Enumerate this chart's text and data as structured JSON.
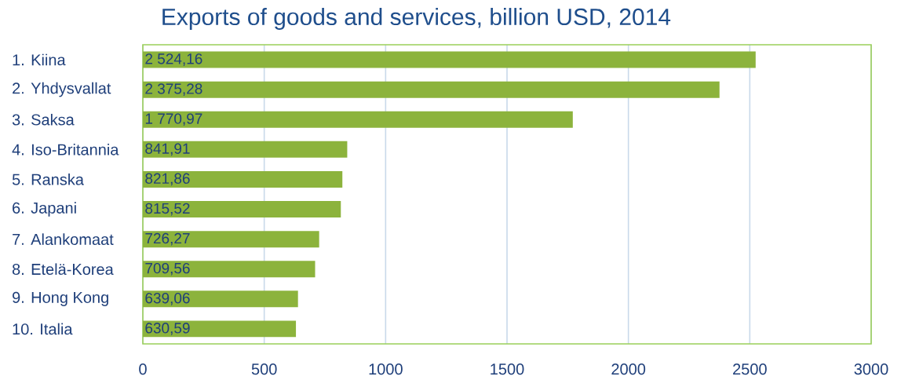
{
  "chart_data": {
    "type": "bar",
    "orientation": "horizontal",
    "title": "Exports of goods and services, billion USD, 2014",
    "categories": [
      "1. Kiina",
      "2. Yhdysvallat",
      "3. Saksa",
      "4. Iso-Britannia",
      "5. Ranska",
      "6. Japani",
      "7. Alankomaat",
      "8. Etelä-Korea",
      "9. Hong Kong",
      "10. Italia"
    ],
    "values": [
      2524.16,
      2375.28,
      1770.97,
      841.91,
      821.86,
      815.52,
      726.27,
      709.56,
      639.06,
      630.59
    ],
    "value_labels": [
      "2 524,16",
      "2 375,28",
      "1 770,97",
      "841,91",
      "821,86",
      "815,52",
      "726,27",
      "709,56",
      "639,06",
      "630,59"
    ],
    "color": "#8cb33c",
    "xlim": [
      0,
      3000
    ],
    "xticks": [
      0,
      500,
      1000,
      1500,
      2000,
      2500,
      3000
    ],
    "grid": "x"
  }
}
